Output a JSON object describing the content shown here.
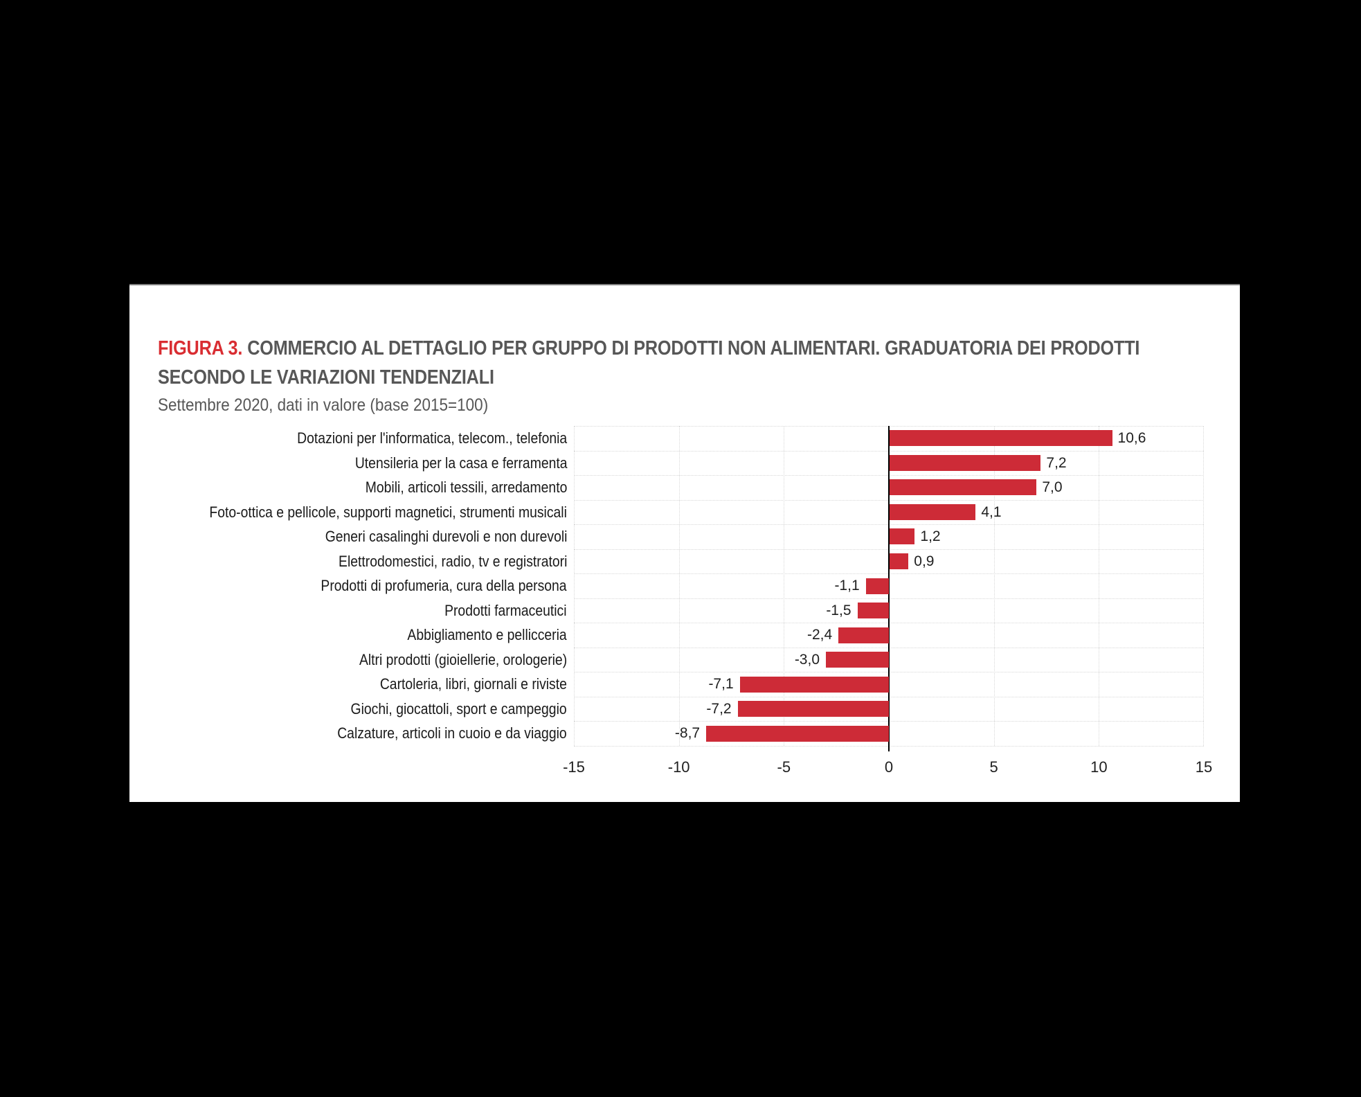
{
  "figure": {
    "label": "FIGURA 3.",
    "title": "COMMERCIO AL DETTAGLIO PER GRUPPO DI PRODOTTI NON ALIMENTARI. GRADUATORIA DEI PRODOTTI SECONDO LE VARIAZIONI TENDENZIALI",
    "subtitle": "Settembre 2020, dati in valore (base 2015=100)"
  },
  "colors": {
    "page_background": "#000000",
    "panel_background": "#ffffff",
    "panel_top_border": "#7f7f7f",
    "figure_label_red": "#d92d32",
    "title_gray": "#575757",
    "bar_red": "#cd2b37",
    "grid_gray": "#d8d8d8",
    "zero_axis_black": "#000000",
    "text_black": "#1a1a1a"
  },
  "chart_data": {
    "type": "bar",
    "orientation": "horizontal",
    "title": "COMMERCIO AL DETTAGLIO PER GRUPPO DI PRODOTTI NON ALIMENTARI. GRADUATORIA DEI PRODOTTI SECONDO LE VARIAZIONI TENDENZIALI",
    "subtitle": "Settembre 2020, dati in valore (base 2015=100)",
    "categories": [
      "Dotazioni per l'informatica, telecom., telefonia",
      "Utensileria per la casa e ferramenta",
      "Mobili, articoli tessili, arredamento",
      "Foto-ottica e pellicole, supporti magnetici, strumenti  musicali",
      "Generi casalinghi durevoli e non durevoli",
      "Elettrodomestici, radio, tv e registratori",
      "Prodotti di profumeria, cura della persona",
      "Prodotti farmaceutici",
      "Abbigliamento e pellicceria",
      "Altri prodotti (gioiellerie, orologerie)",
      "Cartoleria, libri, giornali e riviste",
      "Giochi, giocattoli, sport e campeggio",
      "Calzature, articoli in cuoio e da viaggio"
    ],
    "values": [
      10.6,
      7.2,
      7.0,
      4.1,
      1.2,
      0.9,
      -1.1,
      -1.5,
      -2.4,
      -3.0,
      -7.1,
      -7.2,
      -8.7
    ],
    "value_labels": [
      "10,6",
      "7,2",
      "7,0",
      "4,1",
      "1,2",
      "0,9",
      "-1,1",
      "-1,5",
      "-2,4",
      "-3,0",
      "-7,1",
      "-7,2",
      "-8,7"
    ],
    "xlim": [
      -15,
      15
    ],
    "x_ticks": [
      -15,
      -10,
      -5,
      0,
      5,
      10,
      15
    ],
    "x_tick_labels": [
      "-15",
      "-10",
      "-5",
      "0",
      "5",
      "10",
      "15"
    ],
    "xlabel": "",
    "ylabel": "",
    "grid": true,
    "legend": false
  }
}
